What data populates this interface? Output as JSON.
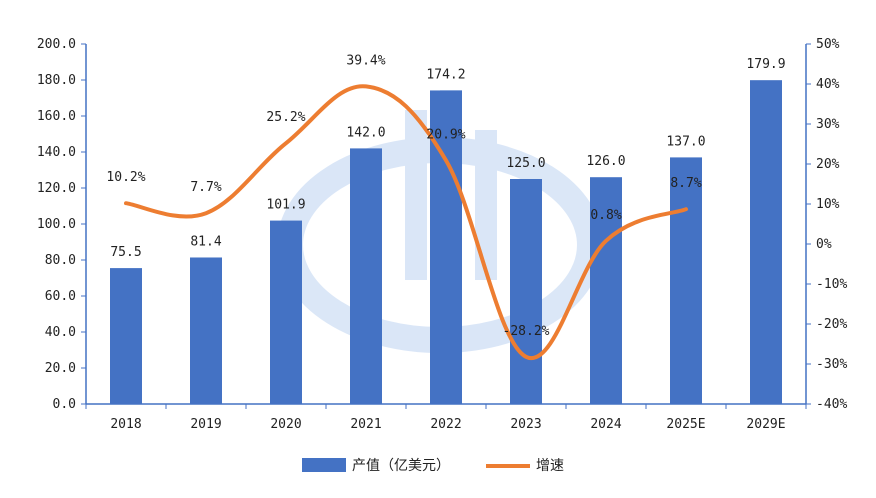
{
  "chart_data": {
    "type": "bar",
    "categories": [
      "2018",
      "2019",
      "2020",
      "2021",
      "2022",
      "2023",
      "2024",
      "2025E",
      "2029E"
    ],
    "series": [
      {
        "name": "产值（亿美元）",
        "type": "bar",
        "axis": "left",
        "color": "#4472C4",
        "values": [
          75.5,
          81.4,
          101.9,
          142.0,
          174.2,
          125.0,
          126.0,
          137.0,
          179.9
        ],
        "labels": [
          "75.5",
          "81.4",
          "101.9",
          "142.0",
          "174.2",
          "125.0",
          "126.0",
          "137.0",
          "179.9"
        ]
      },
      {
        "name": "增速",
        "type": "line",
        "axis": "right",
        "color": "#ED7D31",
        "values": [
          10.2,
          7.7,
          25.2,
          39.4,
          20.9,
          -28.2,
          0.8,
          8.7,
          null
        ],
        "labels": [
          "10.2%",
          "7.7%",
          "25.2%",
          "39.4%",
          "20.9%",
          "-28.2%",
          "0.8%",
          "8.7%",
          ""
        ]
      }
    ],
    "y_left": {
      "ylim": [
        0,
        200
      ],
      "ticks": [
        "0.0",
        "20.0",
        "40.0",
        "60.0",
        "80.0",
        "100.0",
        "120.0",
        "140.0",
        "160.0",
        "180.0",
        "200.0"
      ]
    },
    "y_right": {
      "ylim": [
        -40,
        50
      ],
      "ticks": [
        "-40%",
        "-30%",
        "-20%",
        "-10%",
        "0%",
        "10%",
        "20%",
        "30%",
        "40%",
        "50%"
      ]
    },
    "legend_position": "bottom",
    "grid": false,
    "title": "",
    "xlabel": "",
    "ylabel": ""
  }
}
